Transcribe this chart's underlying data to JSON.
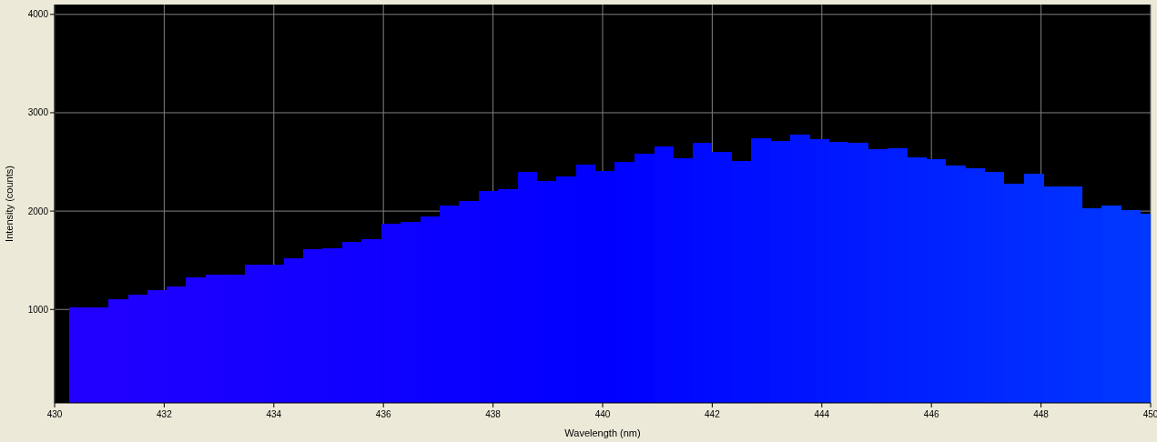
{
  "chart_data": {
    "type": "histogram",
    "xlabel": "Wavelength (nm)",
    "ylabel": "Intensity (counts)",
    "bins": [
      430.27,
      430.63,
      430.98,
      431.34,
      431.69,
      432.05,
      432.4,
      432.76,
      433.11,
      433.47,
      433.83,
      434.18,
      434.54,
      434.89,
      435.25,
      435.6,
      435.96,
      436.31,
      436.67,
      437.02,
      437.38,
      437.74,
      438.09,
      438.45,
      438.8,
      439.16,
      439.51,
      439.87,
      440.22,
      440.58,
      440.94,
      441.29,
      441.65,
      442.0,
      442.36,
      442.71,
      443.07,
      443.42,
      443.78,
      444.13,
      444.49,
      444.85,
      445.2,
      445.56,
      445.91,
      446.27,
      446.62,
      446.98,
      447.33,
      447.69,
      448.05,
      448.4,
      448.76,
      449.11,
      449.47,
      449.82,
      450.0
    ],
    "values": [
      1020,
      1020,
      1100,
      1150,
      1200,
      1230,
      1330,
      1350,
      1350,
      1460,
      1460,
      1520,
      1610,
      1620,
      1690,
      1710,
      1870,
      1890,
      1950,
      2060,
      2100,
      2200,
      2220,
      2400,
      2310,
      2350,
      2470,
      2410,
      2500,
      2580,
      2660,
      2540,
      2690,
      2600,
      2510,
      2740,
      2710,
      2780,
      2730,
      2700,
      2690,
      2630,
      2640,
      2550,
      2530,
      2460,
      2440,
      2400,
      2280,
      2380,
      2250,
      2250,
      2030,
      2060,
      2010,
      1970
    ],
    "colors": [
      "#2200ff",
      "#2100ff",
      "#2000ff",
      "#1e00ff",
      "#1d00ff",
      "#1c00ff",
      "#1b00ff",
      "#1900ff",
      "#1800ff",
      "#1700ff",
      "#1500ff",
      "#1400ff",
      "#1300ff",
      "#1200ff",
      "#1000ff",
      "#0f00ff",
      "#0e00ff",
      "#0c00ff",
      "#0b00ff",
      "#0a00ff",
      "#0900ff",
      "#0700ff",
      "#0600ff",
      "#0500ff",
      "#0400ff",
      "#0200ff",
      "#0100ff",
      "#0000ff",
      "#0002ff",
      "#0004ff",
      "#0006ff",
      "#0008ff",
      "#000aff",
      "#000cff",
      "#000eff",
      "#0010ff",
      "#0012ff",
      "#0014ff",
      "#0016ff",
      "#0018ff",
      "#001aff",
      "#001cff",
      "#001eff",
      "#0020ff",
      "#0022ff",
      "#0024ff",
      "#0026ff",
      "#0028ff",
      "#002aff",
      "#002cff",
      "#002eff",
      "#0030ff",
      "#0032ff",
      "#0034ff",
      "#0036ff",
      "#0038ff"
    ],
    "xlim": [
      430,
      450
    ],
    "xticks": [
      430,
      432,
      434,
      436,
      438,
      440,
      442,
      444,
      446,
      448,
      450
    ],
    "ylim": [
      50,
      4100
    ],
    "yticks": [
      1000,
      2000,
      3000,
      4000
    ],
    "grid": true
  }
}
